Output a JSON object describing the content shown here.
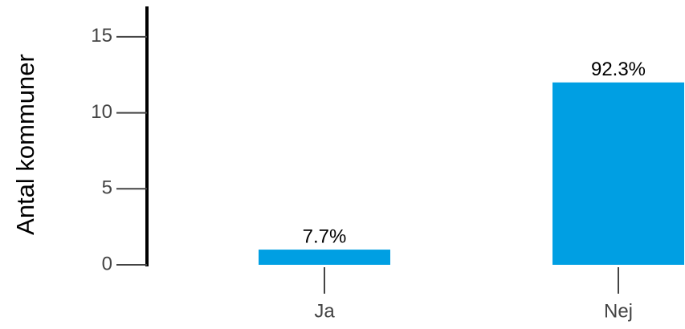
{
  "chart_data": {
    "type": "bar",
    "y_label": "Antal kommuner",
    "categories": [
      "Ja",
      "Nej"
    ],
    "values": [
      1,
      12
    ],
    "value_labels": [
      "7.7%",
      "92.3%"
    ],
    "color": "#009fe3",
    "ylim": [
      0,
      17
    ],
    "yticks": [
      0,
      5,
      10,
      15
    ],
    "grid": false
  }
}
